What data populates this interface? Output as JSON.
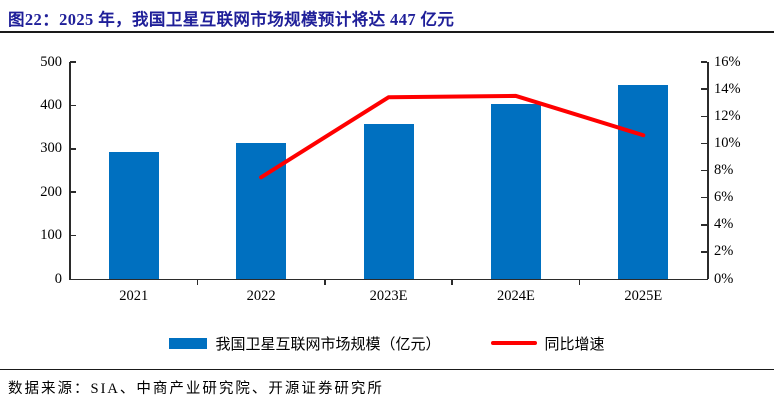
{
  "title": "图22：2025 年，我国卫星互联网市场规模预计将达 447 亿元",
  "source": "数据来源：SIA、中商产业研究院、开源证券研究所",
  "colors": {
    "title": "#1f1f99",
    "bar": "#0070c0",
    "line": "#ff0000",
    "axis": "#2b2b2b"
  },
  "chart_data": {
    "type": "bar",
    "categories": [
      "2021",
      "2022",
      "2023E",
      "2024E",
      "2025E"
    ],
    "series": [
      {
        "name": "我国卫星互联网市场规模（亿元）",
        "type": "bar",
        "axis": "left",
        "values": [
          292,
          314,
          356,
          404,
          447
        ]
      },
      {
        "name": "同比增速",
        "type": "line",
        "axis": "right",
        "unit": "%",
        "values": [
          null,
          7.5,
          13.4,
          13.5,
          10.6
        ]
      }
    ],
    "left_axis": {
      "min": 0,
      "max": 500,
      "step": 100,
      "ticks": [
        "0",
        "100",
        "200",
        "300",
        "400",
        "500"
      ]
    },
    "right_axis": {
      "min": 0,
      "max": 16,
      "step": 2,
      "ticks": [
        "0%",
        "2%",
        "4%",
        "6%",
        "8%",
        "10%",
        "12%",
        "14%",
        "16%"
      ]
    },
    "grid": false,
    "legend_position": "bottom"
  }
}
